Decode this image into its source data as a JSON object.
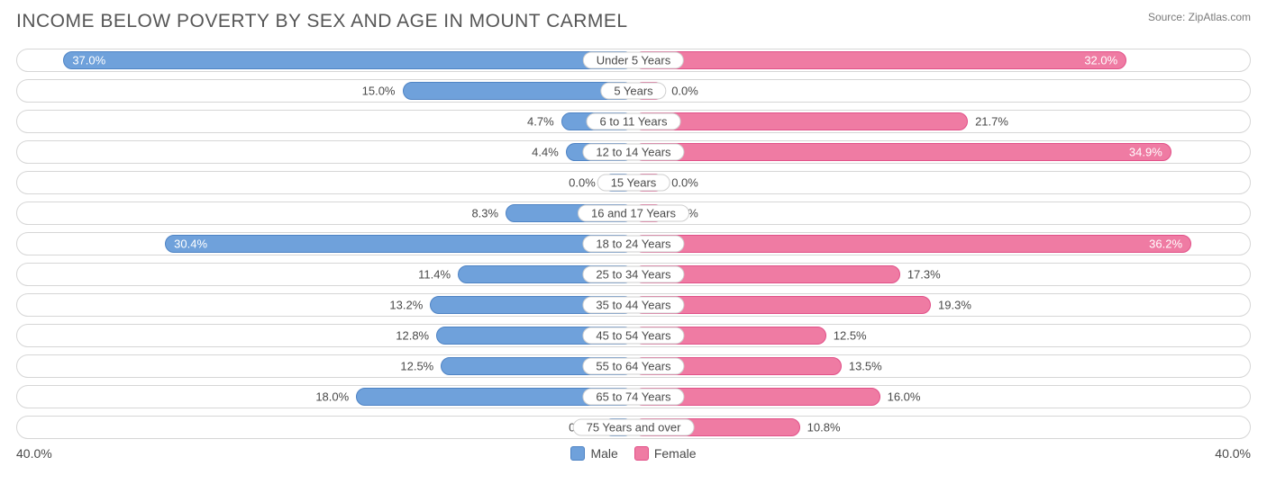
{
  "title": "INCOME BELOW POVERTY BY SEX AND AGE IN MOUNT CARMEL",
  "source": "Source: ZipAtlas.com",
  "chart": {
    "type": "diverging-bar",
    "axis_max": 40.0,
    "axis_left_label": "40.0%",
    "axis_right_label": "40.0%",
    "min_bar_pct": 5.0,
    "colors": {
      "male_fill": "#6fa1db",
      "male_border": "#4e83c4",
      "female_fill": "#ef7ba3",
      "female_border": "#e15088",
      "row_border": "#d6d6d6",
      "background": "#ffffff",
      "text": "#4a4a4a",
      "inside_text": "#ffffff"
    },
    "legend": [
      {
        "label": "Male",
        "fill": "#6fa1db",
        "border": "#4e83c4"
      },
      {
        "label": "Female",
        "fill": "#ef7ba3",
        "border": "#e15088"
      }
    ],
    "rows": [
      {
        "category": "Under 5 Years",
        "male": 37.0,
        "female": 32.0
      },
      {
        "category": "5 Years",
        "male": 15.0,
        "female": 0.0
      },
      {
        "category": "6 to 11 Years",
        "male": 4.7,
        "female": 21.7
      },
      {
        "category": "12 to 14 Years",
        "male": 4.4,
        "female": 34.9
      },
      {
        "category": "15 Years",
        "male": 0.0,
        "female": 0.0
      },
      {
        "category": "16 and 17 Years",
        "male": 8.3,
        "female": 0.0
      },
      {
        "category": "18 to 24 Years",
        "male": 30.4,
        "female": 36.2
      },
      {
        "category": "25 to 34 Years",
        "male": 11.4,
        "female": 17.3
      },
      {
        "category": "35 to 44 Years",
        "male": 13.2,
        "female": 19.3
      },
      {
        "category": "45 to 54 Years",
        "male": 12.8,
        "female": 12.5
      },
      {
        "category": "55 to 64 Years",
        "male": 12.5,
        "female": 13.5
      },
      {
        "category": "65 to 74 Years",
        "male": 18.0,
        "female": 16.0
      },
      {
        "category": "75 Years and over",
        "male": 0.0,
        "female": 10.8
      }
    ]
  }
}
